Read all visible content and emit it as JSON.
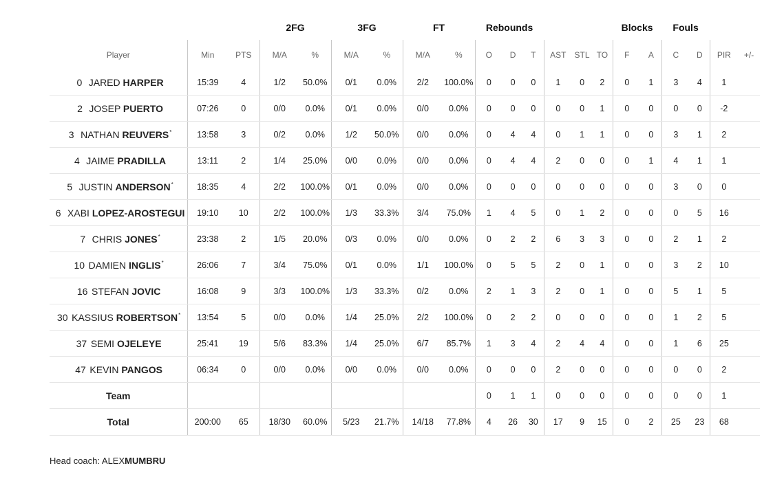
{
  "groups": [
    "2FG",
    "3FG",
    "FT",
    "Rebounds",
    "Blocks",
    "Fouls"
  ],
  "columns": [
    "Player",
    "Min",
    "PTS",
    "M/A",
    "%",
    "M/A",
    "%",
    "M/A",
    "%",
    "O",
    "D",
    "T",
    "AST",
    "STL",
    "TO",
    "F",
    "A",
    "C",
    "D",
    "PIR",
    "+/-"
  ],
  "players": [
    {
      "num": "0",
      "first": "JARED",
      "last": "HARPER",
      "star": false,
      "stats": [
        "15:39",
        "4",
        "1/2",
        "50.0%",
        "0/1",
        "0.0%",
        "2/2",
        "100.0%",
        "0",
        "0",
        "0",
        "1",
        "0",
        "2",
        "0",
        "1",
        "3",
        "4",
        "1",
        ""
      ]
    },
    {
      "num": "2",
      "first": "JOSEP",
      "last": "PUERTO",
      "star": false,
      "stats": [
        "07:26",
        "0",
        "0/0",
        "0.0%",
        "0/1",
        "0.0%",
        "0/0",
        "0.0%",
        "0",
        "0",
        "0",
        "0",
        "0",
        "1",
        "0",
        "0",
        "0",
        "0",
        "-2",
        ""
      ]
    },
    {
      "num": "3",
      "first": "NATHAN",
      "last": "REUVERS",
      "star": true,
      "stats": [
        "13:58",
        "3",
        "0/2",
        "0.0%",
        "1/2",
        "50.0%",
        "0/0",
        "0.0%",
        "0",
        "4",
        "4",
        "0",
        "1",
        "1",
        "0",
        "0",
        "3",
        "1",
        "2",
        ""
      ]
    },
    {
      "num": "4",
      "first": "JAIME",
      "last": "PRADILLA",
      "star": false,
      "stats": [
        "13:11",
        "2",
        "1/4",
        "25.0%",
        "0/0",
        "0.0%",
        "0/0",
        "0.0%",
        "0",
        "4",
        "4",
        "2",
        "0",
        "0",
        "0",
        "1",
        "4",
        "1",
        "1",
        ""
      ]
    },
    {
      "num": "5",
      "first": "JUSTIN",
      "last": "ANDERSON",
      "star": true,
      "stats": [
        "18:35",
        "4",
        "2/2",
        "100.0%",
        "0/1",
        "0.0%",
        "0/0",
        "0.0%",
        "0",
        "0",
        "0",
        "0",
        "0",
        "0",
        "0",
        "0",
        "3",
        "0",
        "0",
        ""
      ]
    },
    {
      "num": "6",
      "first": "XABI",
      "last": "LOPEZ-AROSTEGUI",
      "star": false,
      "stats": [
        "19:10",
        "10",
        "2/2",
        "100.0%",
        "1/3",
        "33.3%",
        "3/4",
        "75.0%",
        "1",
        "4",
        "5",
        "0",
        "1",
        "2",
        "0",
        "0",
        "0",
        "5",
        "16",
        ""
      ]
    },
    {
      "num": "7",
      "first": "CHRIS",
      "last": "JONES",
      "star": true,
      "stats": [
        "23:38",
        "2",
        "1/5",
        "20.0%",
        "0/3",
        "0.0%",
        "0/0",
        "0.0%",
        "0",
        "2",
        "2",
        "6",
        "3",
        "3",
        "0",
        "0",
        "2",
        "1",
        "2",
        ""
      ]
    },
    {
      "num": "10",
      "first": "DAMIEN",
      "last": "INGLIS",
      "star": true,
      "stats": [
        "26:06",
        "7",
        "3/4",
        "75.0%",
        "0/1",
        "0.0%",
        "1/1",
        "100.0%",
        "0",
        "5",
        "5",
        "2",
        "0",
        "1",
        "0",
        "0",
        "3",
        "2",
        "10",
        ""
      ]
    },
    {
      "num": "16",
      "first": "STEFAN",
      "last": "JOVIC",
      "star": false,
      "stats": [
        "16:08",
        "9",
        "3/3",
        "100.0%",
        "1/3",
        "33.3%",
        "0/2",
        "0.0%",
        "2",
        "1",
        "3",
        "2",
        "0",
        "1",
        "0",
        "0",
        "5",
        "1",
        "5",
        ""
      ]
    },
    {
      "num": "30",
      "first": "KASSIUS",
      "last": "ROBERTSON",
      "star": true,
      "stats": [
        "13:54",
        "5",
        "0/0",
        "0.0%",
        "1/4",
        "25.0%",
        "2/2",
        "100.0%",
        "0",
        "2",
        "2",
        "0",
        "0",
        "0",
        "0",
        "0",
        "1",
        "2",
        "5",
        ""
      ]
    },
    {
      "num": "37",
      "first": "SEMI",
      "last": "OJELEYE",
      "star": false,
      "stats": [
        "25:41",
        "19",
        "5/6",
        "83.3%",
        "1/4",
        "25.0%",
        "6/7",
        "85.7%",
        "1",
        "3",
        "4",
        "2",
        "4",
        "4",
        "0",
        "0",
        "1",
        "6",
        "25",
        ""
      ]
    },
    {
      "num": "47",
      "first": "KEVIN",
      "last": "PANGOS",
      "star": false,
      "stats": [
        "06:34",
        "0",
        "0/0",
        "0.0%",
        "0/0",
        "0.0%",
        "0/0",
        "0.0%",
        "0",
        "0",
        "0",
        "2",
        "0",
        "0",
        "0",
        "0",
        "0",
        "0",
        "2",
        ""
      ]
    }
  ],
  "team": {
    "label": "Team",
    "stats": [
      "",
      "",
      "",
      "",
      "",
      "",
      "",
      "",
      "0",
      "1",
      "1",
      "0",
      "0",
      "0",
      "0",
      "0",
      "0",
      "0",
      "1",
      ""
    ]
  },
  "total": {
    "label": "Total",
    "stats": [
      "200:00",
      "65",
      "18/30",
      "60.0%",
      "5/23",
      "21.7%",
      "14/18",
      "77.8%",
      "4",
      "26",
      "30",
      "17",
      "9",
      "15",
      "0",
      "2",
      "25",
      "23",
      "68",
      ""
    ]
  },
  "coach": {
    "label": "Head coach:",
    "first": "ALEX",
    "last": "MUMBRU"
  }
}
